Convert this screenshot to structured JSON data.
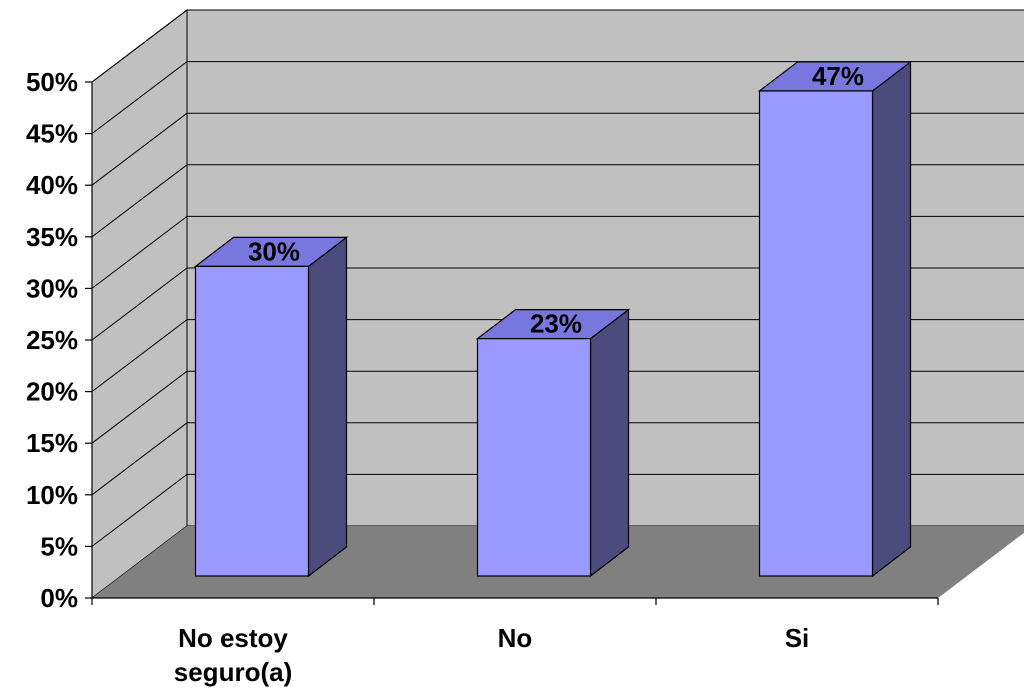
{
  "chart_data": {
    "type": "bar",
    "three_d": true,
    "categories": [
      [
        "No estoy",
        "seguro(a)"
      ],
      [
        "No"
      ],
      [
        "Si"
      ]
    ],
    "values": [
      30,
      23,
      47
    ],
    "data_labels": [
      "30%",
      "23%",
      "47%"
    ],
    "y_ticks": [
      0,
      5,
      10,
      15,
      20,
      25,
      30,
      35,
      40,
      45,
      50
    ],
    "y_tick_labels": [
      "0%",
      "5%",
      "10%",
      "15%",
      "20%",
      "25%",
      "30%",
      "35%",
      "40%",
      "45%",
      "50%"
    ],
    "ylim": [
      0,
      50
    ],
    "grid": true,
    "legend": "none",
    "colors": {
      "bar_front": "#9999FF",
      "bar_top": "#7777DD",
      "bar_side": "#4B4B7D",
      "back_wall": "#C0C0C0",
      "side_wall": "#C0C0C0",
      "floor": "#808080",
      "grid": "#000000"
    }
  }
}
